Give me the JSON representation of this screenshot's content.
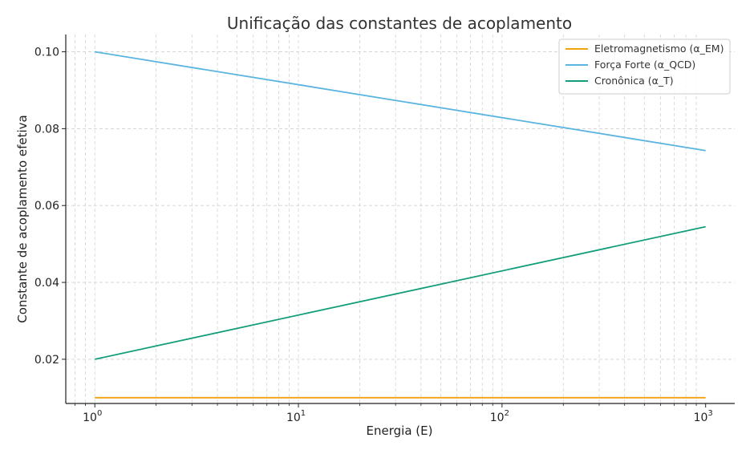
{
  "chart_data": {
    "type": "line",
    "title": "Unificação das constantes de acoplamento",
    "xlabel": "Energia (E)",
    "ylabel": "Constante de acoplamento efetiva",
    "xscale": "log",
    "xlim": [
      0.72,
      1390
    ],
    "ylim": [
      0.0085,
      0.1045
    ],
    "x_ticks": [
      {
        "value": 1,
        "base": "10",
        "exp": "0"
      },
      {
        "value": 10,
        "base": "10",
        "exp": "1"
      },
      {
        "value": 100,
        "base": "10",
        "exp": "2"
      },
      {
        "value": 1000,
        "base": "10",
        "exp": "3"
      }
    ],
    "y_ticks": [
      {
        "value": 0.02,
        "label": "0.02"
      },
      {
        "value": 0.04,
        "label": "0.04"
      },
      {
        "value": 0.06,
        "label": "0.06"
      },
      {
        "value": 0.08,
        "label": "0.08"
      },
      {
        "value": 0.1,
        "label": "0.10"
      }
    ],
    "grid": true,
    "legend_position": "top-right",
    "x": [
      1,
      1000
    ],
    "series": [
      {
        "name": "Eletromagnetismo (α_EM)",
        "color": "#f0a30a",
        "values": [
          0.01,
          0.01
        ]
      },
      {
        "name": "Força Forte (α_QCD)",
        "color": "#5ab4e0",
        "values": [
          0.1,
          0.0743
        ]
      },
      {
        "name": "Cronônica (α_T)",
        "color": "#129e7a",
        "values": [
          0.02,
          0.0545
        ]
      }
    ]
  }
}
